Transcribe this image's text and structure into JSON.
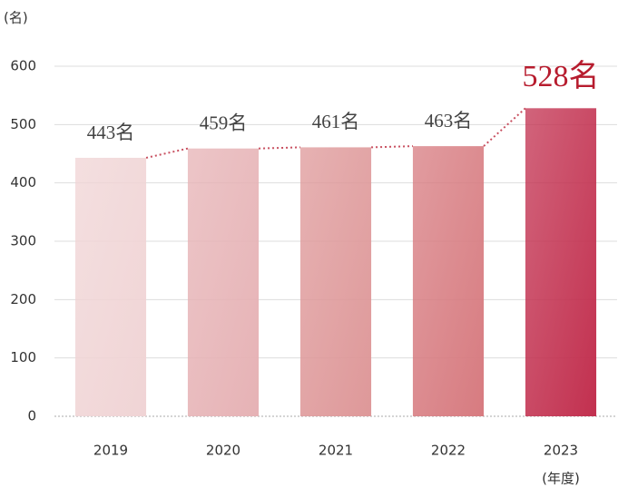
{
  "chart_data": {
    "type": "bar",
    "y_axis_label": "(名)",
    "x_axis_label": "(年度)",
    "categories": [
      "2019",
      "2020",
      "2021",
      "2022",
      "2023"
    ],
    "values": [
      443,
      459,
      461,
      463,
      528
    ],
    "value_labels": [
      "443名",
      "459名",
      "461名",
      "463名",
      "528名"
    ],
    "colors": [
      "#f0d4d5",
      "#e6b2b5",
      "#de9899",
      "#d77b80",
      "#c2304f"
    ],
    "highlight_color": "#b71c2e",
    "ylim": [
      0,
      600
    ],
    "yticks": [
      0,
      100,
      200,
      300,
      400,
      500,
      600
    ],
    "grid": true
  }
}
